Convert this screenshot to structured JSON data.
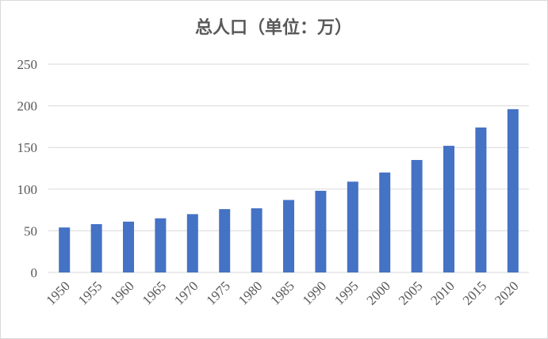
{
  "chart_data": {
    "type": "bar",
    "title": "总人口（单位：万）",
    "categories": [
      "1950",
      "1955",
      "1960",
      "1965",
      "1970",
      "1975",
      "1980",
      "1985",
      "1990",
      "1995",
      "2000",
      "2005",
      "2010",
      "2015",
      "2020"
    ],
    "series": [
      {
        "values": [
          54,
          58,
          61,
          65,
          70,
          76,
          77,
          87,
          98,
          109,
          120,
          135,
          152,
          174,
          196
        ]
      }
    ],
    "ylim": [
      0,
      250
    ],
    "yticks": [
      0,
      50,
      100,
      150,
      200,
      250
    ],
    "grid": true,
    "bar_color": "#4472c4",
    "grid_color": "#d9d9d9",
    "text_color": "#595959"
  }
}
